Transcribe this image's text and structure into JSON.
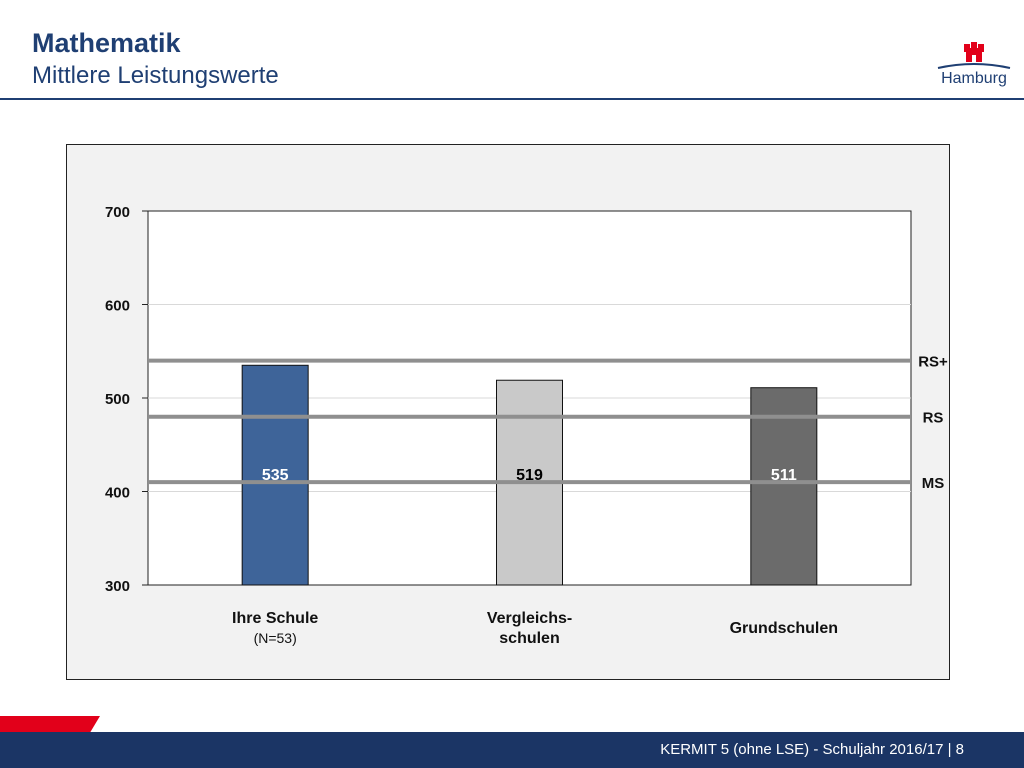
{
  "header": {
    "title": "Mathematik",
    "subtitle": "Mittlere Leistungswerte",
    "logo_text": "Hamburg"
  },
  "footer": {
    "text": "KERMIT 5 (ohne LSE) - Schuljahr 2016/17 | 8"
  },
  "colors": {
    "brand_blue": "#1f3f73",
    "footer_blue": "#1b3565",
    "accent_red": "#e2001a"
  },
  "chart_data": {
    "type": "bar",
    "categories": [
      "Ihre Schule",
      "Vergleichs- schulen",
      "Grundschulen"
    ],
    "category_lines": [
      [
        "Ihre Schule",
        "(N=53)"
      ],
      [
        "Vergleichs-",
        "schulen"
      ],
      [
        "Grundschulen"
      ]
    ],
    "values": [
      535,
      519,
      511
    ],
    "data_labels": [
      "535",
      "519",
      "511"
    ],
    "bar_colors": [
      "#3e6499",
      "#c9c9c9",
      "#6b6b6b"
    ],
    "label_colors": [
      "#ffffff",
      "#000000",
      "#ffffff"
    ],
    "ylim": [
      300,
      700
    ],
    "yticks": [
      300,
      400,
      500,
      600,
      700
    ],
    "grid": true,
    "reference_lines": [
      {
        "label": "RS+",
        "value": 540
      },
      {
        "label": "RS",
        "value": 480
      },
      {
        "label": "MS",
        "value": 410
      }
    ]
  }
}
